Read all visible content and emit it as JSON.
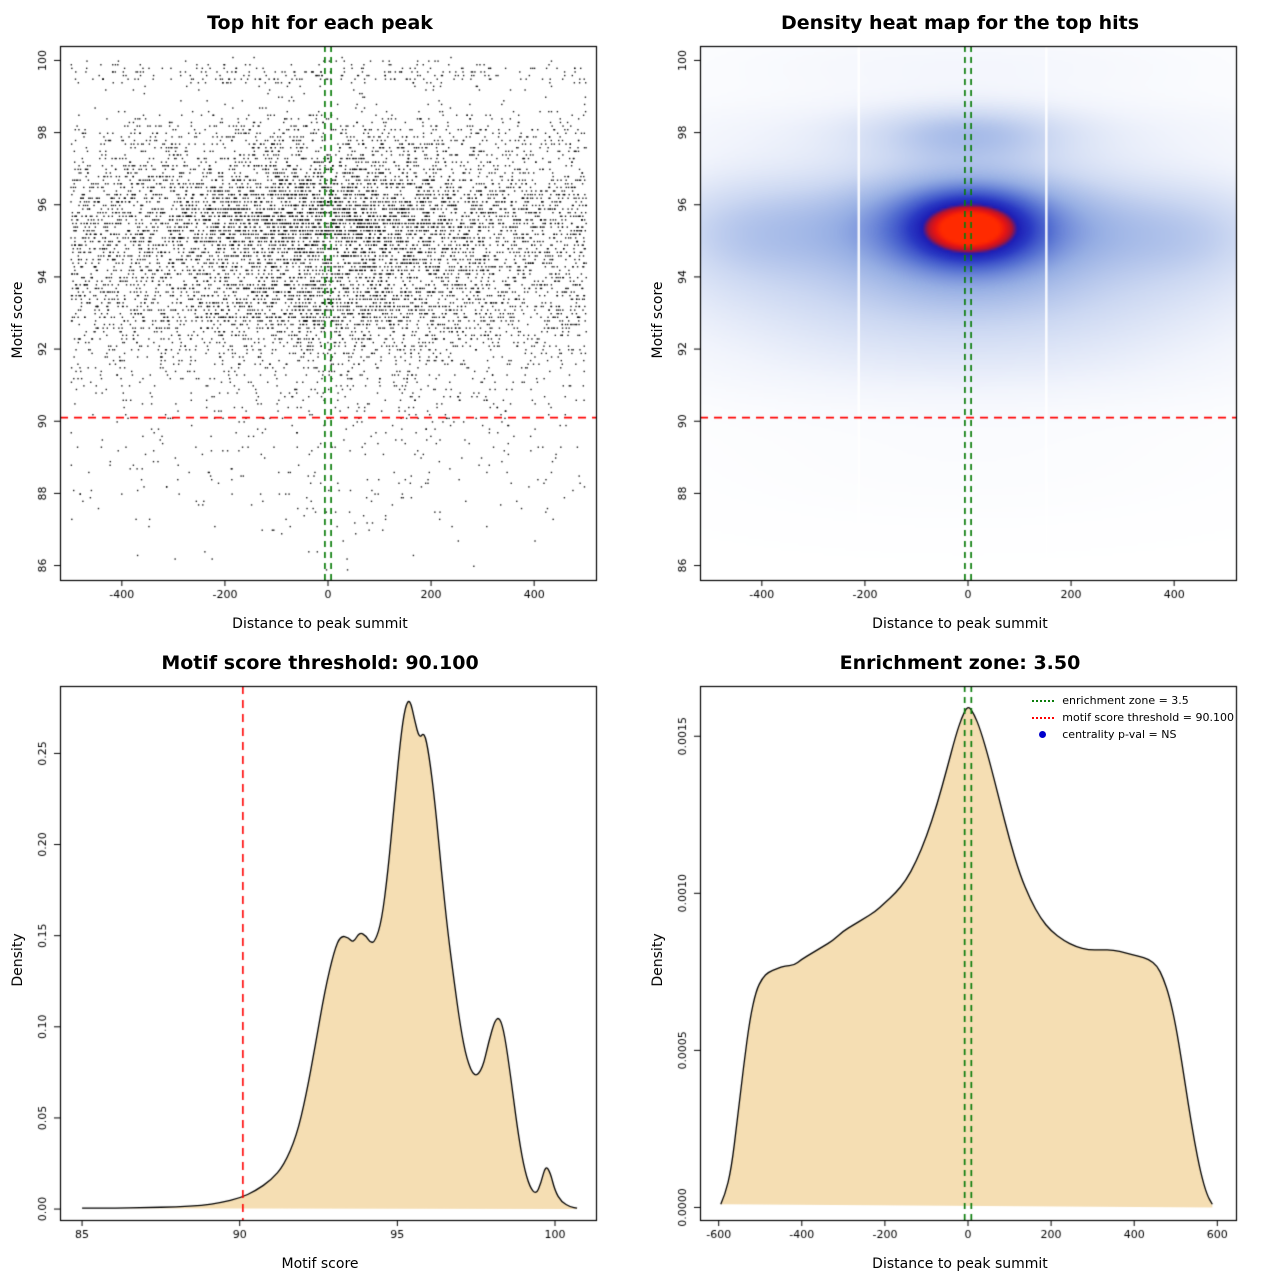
{
  "figure": {
    "background": "#ffffff"
  },
  "chart_data": [
    {
      "id": "top-hit-scatter",
      "type": "scatter",
      "title": "Top hit for each peak",
      "xlabel": "Distance to peak summit",
      "ylabel": "Motif score",
      "xlim": [
        -520,
        520
      ],
      "ylim": [
        85.6,
        100.4
      ],
      "xticks": [
        -400,
        -200,
        0,
        200,
        400
      ],
      "xtick_labels": [
        "-400",
        "-200",
        "0",
        "200",
        "400"
      ],
      "yticks": [
        86,
        88,
        90,
        92,
        94,
        96,
        98,
        100
      ],
      "ytick_labels": [
        "86",
        "88",
        "90",
        "92",
        "94",
        "96",
        "98",
        "100"
      ],
      "points": {
        "n": 9000,
        "seed": 7,
        "color": "#000000",
        "size": 1.4,
        "alpha": 0.9,
        "x_range": [
          -500,
          500
        ],
        "x_center_frac": 0.38,
        "x_center_sd": 190,
        "y_step": 0.1,
        "y_clip": [
          85.7,
          100.15
        ],
        "y_components": [
          {
            "w": 0.5,
            "mean": 95.4,
            "sd": 0.95
          },
          {
            "w": 0.17,
            "mean": 93.3,
            "sd": 0.65
          },
          {
            "w": 0.09,
            "mean": 92.3,
            "sd": 0.9
          },
          {
            "w": 0.09,
            "mean": 96.9,
            "sd": 0.75
          },
          {
            "w": 0.055,
            "mean": 98.0,
            "sd": 0.4
          },
          {
            "w": 0.035,
            "mean": 99.65,
            "sd": 0.22
          },
          {
            "w": 0.03,
            "mean": 91.0,
            "sd": 0.9
          },
          {
            "w": 0.02,
            "mean": 88.6,
            "sd": 1.3
          }
        ]
      },
      "hlines": [
        {
          "y": 90.1,
          "color": "#ff0000",
          "dash": [
            8,
            6
          ],
          "lw": 1.6
        }
      ],
      "vlines": [
        {
          "x": -6,
          "color": "#0b7d0b",
          "dash": [
            6,
            5
          ],
          "lw": 1.7
        },
        {
          "x": 6,
          "color": "#0b7d0b",
          "dash": [
            6,
            5
          ],
          "lw": 1.7
        }
      ]
    },
    {
      "id": "top-hit-heatmap",
      "type": "heatmap",
      "title": "Density heat map for the top hits",
      "xlabel": "Distance to peak summit",
      "ylabel": "Motif score",
      "xlim": [
        -520,
        520
      ],
      "ylim": [
        85.6,
        100.4
      ],
      "xticks": [
        -400,
        -200,
        0,
        200,
        400
      ],
      "xtick_labels": [
        "-400",
        "-200",
        "0",
        "200",
        "400"
      ],
      "yticks": [
        86,
        88,
        90,
        92,
        94,
        96,
        98,
        100
      ],
      "ytick_labels": [
        "86",
        "88",
        "90",
        "92",
        "94",
        "96",
        "98",
        "100"
      ],
      "field": {
        "vmax": 2.1,
        "blobs": [
          [
            0,
            95.3,
            400,
            1.25,
            0.5
          ],
          [
            -430,
            95.2,
            120,
            1.1,
            0.25
          ],
          [
            430,
            95.1,
            120,
            1.0,
            0.22
          ],
          [
            0,
            95.4,
            160,
            1.15,
            0.75
          ],
          [
            5,
            95.35,
            75,
            0.6,
            1.05
          ],
          [
            0,
            93.1,
            380,
            0.9,
            0.28
          ],
          [
            0,
            91.6,
            380,
            0.8,
            0.14
          ],
          [
            0,
            98.0,
            130,
            0.55,
            0.38
          ],
          [
            0,
            98.1,
            420,
            0.6,
            0.14
          ],
          [
            0,
            99.9,
            350,
            0.6,
            0.1
          ],
          [
            0,
            88.8,
            350,
            1.2,
            0.035
          ],
          [
            0,
            94.8,
            500,
            3.2,
            0.1
          ]
        ],
        "colormap": [
          [
            0,
            "#ffffff"
          ],
          [
            0.08,
            "#f1f4fc"
          ],
          [
            0.22,
            "#ccd8f2"
          ],
          [
            0.38,
            "#97afe4"
          ],
          [
            0.55,
            "#5570d2"
          ],
          [
            0.7,
            "#2a3ac4"
          ],
          [
            0.82,
            "#1d1db6"
          ],
          [
            0.88,
            "#b01430"
          ],
          [
            0.94,
            "#e61414"
          ],
          [
            1,
            "#ff2a00"
          ]
        ],
        "gap_lines": {
          "x": [
            -212,
            152
          ],
          "color": "#ffffff",
          "lw": 2.5,
          "alpha": 0.9
        }
      },
      "hlines": [
        {
          "y": 90.1,
          "color": "#ff0000",
          "dash": [
            8,
            6
          ],
          "lw": 1.6
        }
      ],
      "vlines": [
        {
          "x": -6,
          "color": "#0b7d0b",
          "dash": [
            6,
            5
          ],
          "lw": 1.7
        },
        {
          "x": 6,
          "color": "#0b7d0b",
          "dash": [
            6,
            5
          ],
          "lw": 1.7
        }
      ]
    },
    {
      "id": "motif-score-density",
      "type": "density",
      "title": "Motif score threshold: 90.100",
      "xlabel": "Motif score",
      "ylabel": "Density",
      "xlim": [
        84.3,
        101.3
      ],
      "ylim": [
        -0.006,
        0.287
      ],
      "xticks": [
        85,
        90,
        95,
        100
      ],
      "xtick_labels": [
        "85",
        "90",
        "95",
        "100"
      ],
      "yticks": [
        0,
        0.05,
        0.1,
        0.15,
        0.2,
        0.25
      ],
      "ytick_labels": [
        "0.00",
        "0.05",
        "0.10",
        "0.15",
        "0.20",
        "0.25"
      ],
      "curve": {
        "fill": "#f5deb3",
        "stroke": "#000000",
        "lw": 1.3,
        "points": [
          [
            85,
            0.0005
          ],
          [
            86,
            0.0005
          ],
          [
            87,
            0.0008
          ],
          [
            88,
            0.0012
          ],
          [
            88.8,
            0.002
          ],
          [
            89.4,
            0.0035
          ],
          [
            90,
            0.006
          ],
          [
            90.5,
            0.01
          ],
          [
            91,
            0.016
          ],
          [
            91.4,
            0.024
          ],
          [
            91.8,
            0.04
          ],
          [
            92.1,
            0.062
          ],
          [
            92.4,
            0.09
          ],
          [
            92.7,
            0.12
          ],
          [
            93.0,
            0.142
          ],
          [
            93.2,
            0.15
          ],
          [
            93.45,
            0.149
          ],
          [
            93.6,
            0.146
          ],
          [
            93.8,
            0.152
          ],
          [
            94.0,
            0.15
          ],
          [
            94.15,
            0.146
          ],
          [
            94.3,
            0.147
          ],
          [
            94.5,
            0.158
          ],
          [
            94.7,
            0.185
          ],
          [
            94.9,
            0.222
          ],
          [
            95.1,
            0.258
          ],
          [
            95.25,
            0.276
          ],
          [
            95.4,
            0.28
          ],
          [
            95.55,
            0.268
          ],
          [
            95.7,
            0.258
          ],
          [
            95.85,
            0.262
          ],
          [
            96.0,
            0.25
          ],
          [
            96.2,
            0.222
          ],
          [
            96.4,
            0.185
          ],
          [
            96.6,
            0.152
          ],
          [
            96.8,
            0.125
          ],
          [
            97.0,
            0.1
          ],
          [
            97.2,
            0.082
          ],
          [
            97.45,
            0.072
          ],
          [
            97.7,
            0.077
          ],
          [
            97.9,
            0.092
          ],
          [
            98.1,
            0.104
          ],
          [
            98.25,
            0.105
          ],
          [
            98.4,
            0.096
          ],
          [
            98.6,
            0.072
          ],
          [
            98.8,
            0.045
          ],
          [
            99.0,
            0.024
          ],
          [
            99.2,
            0.012
          ],
          [
            99.4,
            0.008
          ],
          [
            99.55,
            0.014
          ],
          [
            99.7,
            0.024
          ],
          [
            99.85,
            0.02
          ],
          [
            100.0,
            0.01
          ],
          [
            100.2,
            0.004
          ],
          [
            100.5,
            0.001
          ],
          [
            100.7,
            0.0005
          ]
        ]
      },
      "vlines": [
        {
          "x": 90.1,
          "color": "#ff0000",
          "dash": [
            8,
            6
          ],
          "lw": 1.6
        }
      ]
    },
    {
      "id": "distance-density",
      "type": "density",
      "title": "Enrichment zone: 3.50",
      "xlabel": "Distance to peak summit",
      "ylabel": "Density",
      "xlim": [
        -645,
        645
      ],
      "ylim": [
        -4e-05,
        0.00166
      ],
      "xticks": [
        -600,
        -400,
        -200,
        0,
        200,
        400,
        600
      ],
      "xtick_labels": [
        "-600",
        "-400",
        "-200",
        "0",
        "200",
        "400",
        "600"
      ],
      "yticks": [
        0,
        0.0005,
        0.001,
        0.0015
      ],
      "ytick_labels": [
        "0.0000",
        "0.0005",
        "0.0010",
        "0.0015"
      ],
      "curve": {
        "fill": "#f5deb3",
        "stroke": "#000000",
        "lw": 1.3,
        "points": [
          [
            -595,
            1e-05
          ],
          [
            -585,
            4e-05
          ],
          [
            -570,
            0.00012
          ],
          [
            -555,
            0.00028
          ],
          [
            -540,
            0.00045
          ],
          [
            -525,
            0.0006
          ],
          [
            -510,
            0.00069
          ],
          [
            -495,
            0.00073
          ],
          [
            -480,
            0.00075
          ],
          [
            -460,
            0.00076
          ],
          [
            -440,
            0.00077
          ],
          [
            -420,
            0.00077
          ],
          [
            -400,
            0.00079
          ],
          [
            -375,
            0.00081
          ],
          [
            -350,
            0.00083
          ],
          [
            -325,
            0.00085
          ],
          [
            -300,
            0.00088
          ],
          [
            -275,
            0.0009
          ],
          [
            -250,
            0.00092
          ],
          [
            -225,
            0.00094
          ],
          [
            -200,
            0.00097
          ],
          [
            -175,
            0.001
          ],
          [
            -150,
            0.00104
          ],
          [
            -125,
            0.0011
          ],
          [
            -100,
            0.00118
          ],
          [
            -75,
            0.00128
          ],
          [
            -50,
            0.0014
          ],
          [
            -30,
            0.0015
          ],
          [
            -15,
            0.00156
          ],
          [
            0,
            0.0016
          ],
          [
            15,
            0.00157
          ],
          [
            30,
            0.00152
          ],
          [
            50,
            0.00143
          ],
          [
            75,
            0.0013
          ],
          [
            100,
            0.00117
          ],
          [
            125,
            0.00106
          ],
          [
            150,
            0.00098
          ],
          [
            175,
            0.00092
          ],
          [
            200,
            0.00088
          ],
          [
            230,
            0.00085
          ],
          [
            260,
            0.00083
          ],
          [
            290,
            0.00082
          ],
          [
            320,
            0.00082
          ],
          [
            350,
            0.00082
          ],
          [
            380,
            0.00081
          ],
          [
            410,
            0.0008
          ],
          [
            435,
            0.00079
          ],
          [
            455,
            0.00077
          ],
          [
            470,
            0.00073
          ],
          [
            485,
            0.00067
          ],
          [
            500,
            0.00058
          ],
          [
            515,
            0.00046
          ],
          [
            530,
            0.00033
          ],
          [
            545,
            0.00021
          ],
          [
            560,
            0.00011
          ],
          [
            575,
            4e-05
          ],
          [
            588,
            1e-05
          ]
        ]
      },
      "vlines": [
        {
          "x": -8,
          "color": "#0b7d0b",
          "dash": [
            6,
            5
          ],
          "lw": 1.7
        },
        {
          "x": 8,
          "color": "#0b7d0b",
          "dash": [
            6,
            5
          ],
          "lw": 1.7
        }
      ],
      "legend": {
        "items": [
          {
            "type": "line",
            "color": "#0b7d0b",
            "label": "enrichment zone = 3.5"
          },
          {
            "type": "line",
            "color": "#ff0000",
            "label": "motif score threshold = 90.100"
          },
          {
            "type": "dot",
            "color": "#0000cc",
            "label": "centrality p-val = NS"
          }
        ]
      }
    }
  ]
}
